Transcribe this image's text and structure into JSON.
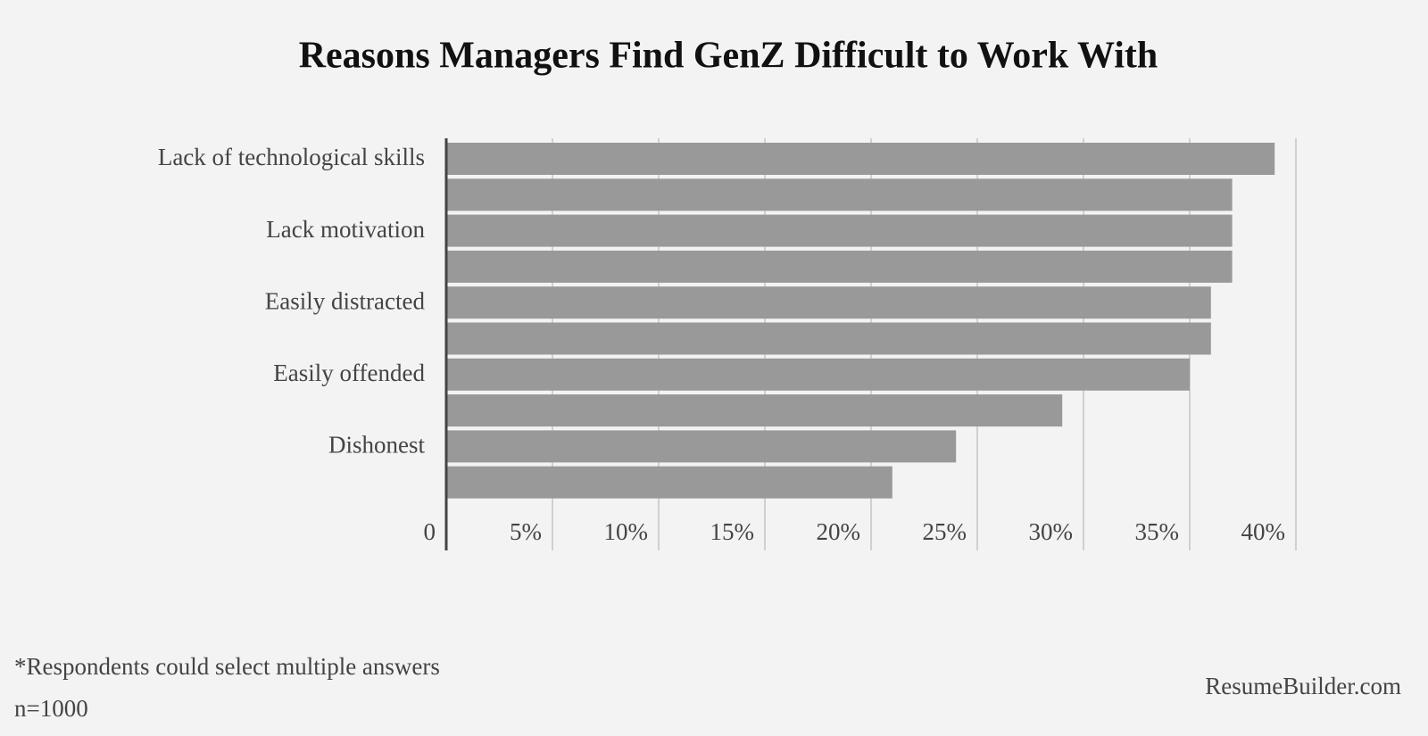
{
  "chart_data": {
    "type": "barh",
    "title": "Reasons Managers Find GenZ Difficult to Work With",
    "categories": [
      "Lack of technological skills",
      null,
      "Lack motivation",
      null,
      "Easily distracted",
      null,
      "Easily offended",
      null,
      "Dishonest",
      null
    ],
    "values": [
      39,
      37,
      37,
      37,
      36,
      36,
      35,
      29,
      24,
      21
    ],
    "color": "#999999",
    "xlim": [
      0,
      40
    ],
    "xticks": [
      0,
      {
        "value": 5,
        "label": "5%"
      },
      {
        "value": 10,
        "label": "10%"
      },
      {
        "value": 15,
        "label": "15%"
      },
      {
        "value": 20,
        "label": "20%"
      },
      {
        "value": 25,
        "label": "25%"
      },
      {
        "value": 30,
        "label": "30%"
      },
      {
        "value": 35,
        "label": "35%"
      },
      {
        "value": 40,
        "label": "40%"
      }
    ],
    "grid": true,
    "notes": [
      "*Respondents could select multiple answers",
      "n=1000"
    ],
    "source": "ResumeBuilder.com"
  }
}
